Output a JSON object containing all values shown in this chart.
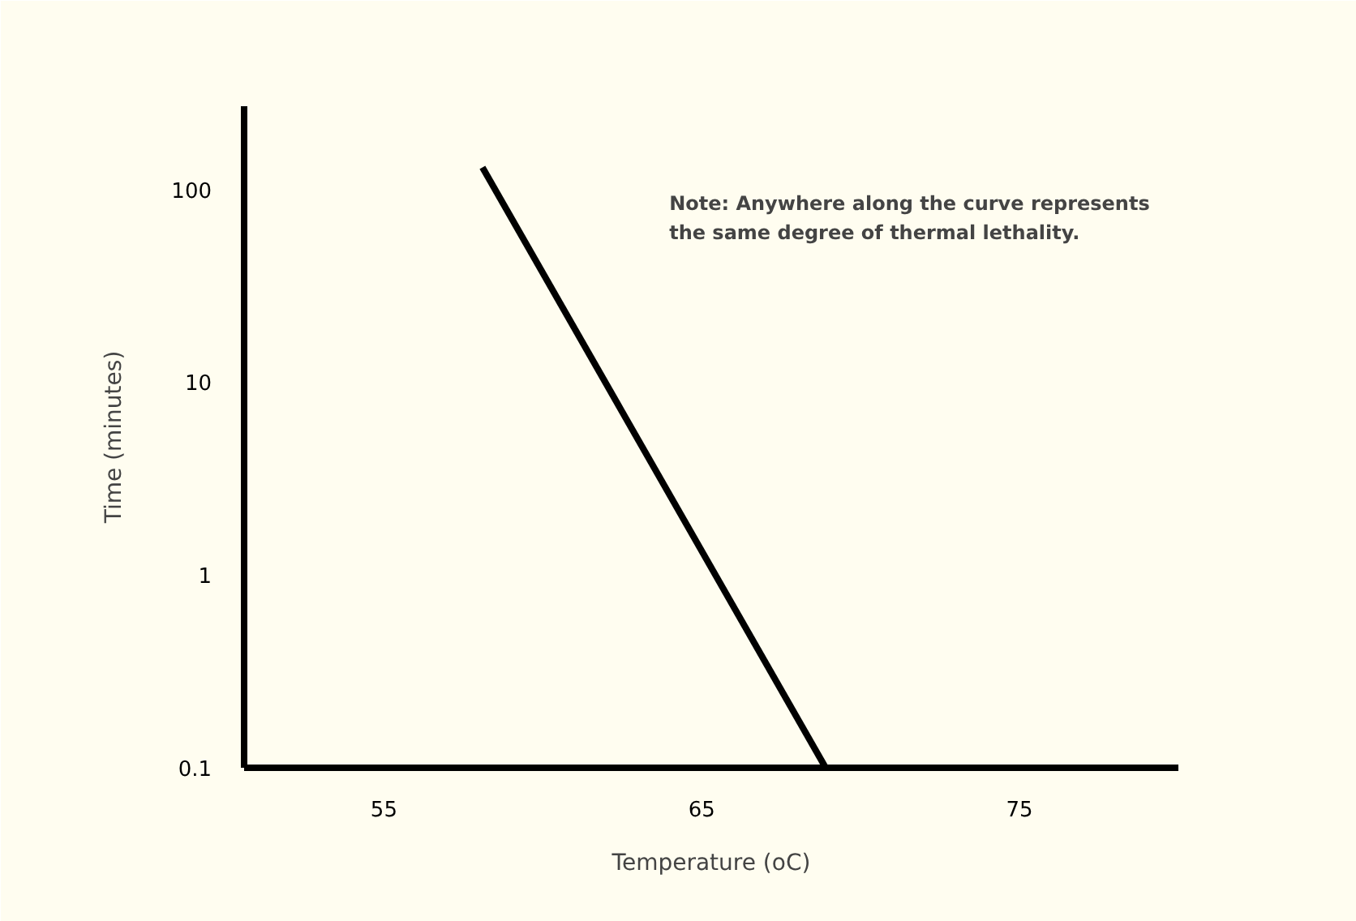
{
  "chart_data": {
    "type": "line",
    "xlabel": "Temperature (oC)",
    "ylabel": "Time (minutes)",
    "annotations": [
      "Note: Anywhere along the curve represents\nthe same degree of thermal lethality."
    ],
    "x": [
      58.1,
      68.9
    ],
    "series": [
      {
        "color": "#000000",
        "values": [
          130,
          0.1
        ]
      }
    ],
    "xlim": [
      50.6,
      80
    ],
    "xticks": [
      55,
      65,
      75
    ],
    "ylim": [
      0.1,
      270
    ],
    "yticks": [
      0.1,
      1,
      10,
      100
    ],
    "log": "y",
    "line_style": "solid"
  }
}
